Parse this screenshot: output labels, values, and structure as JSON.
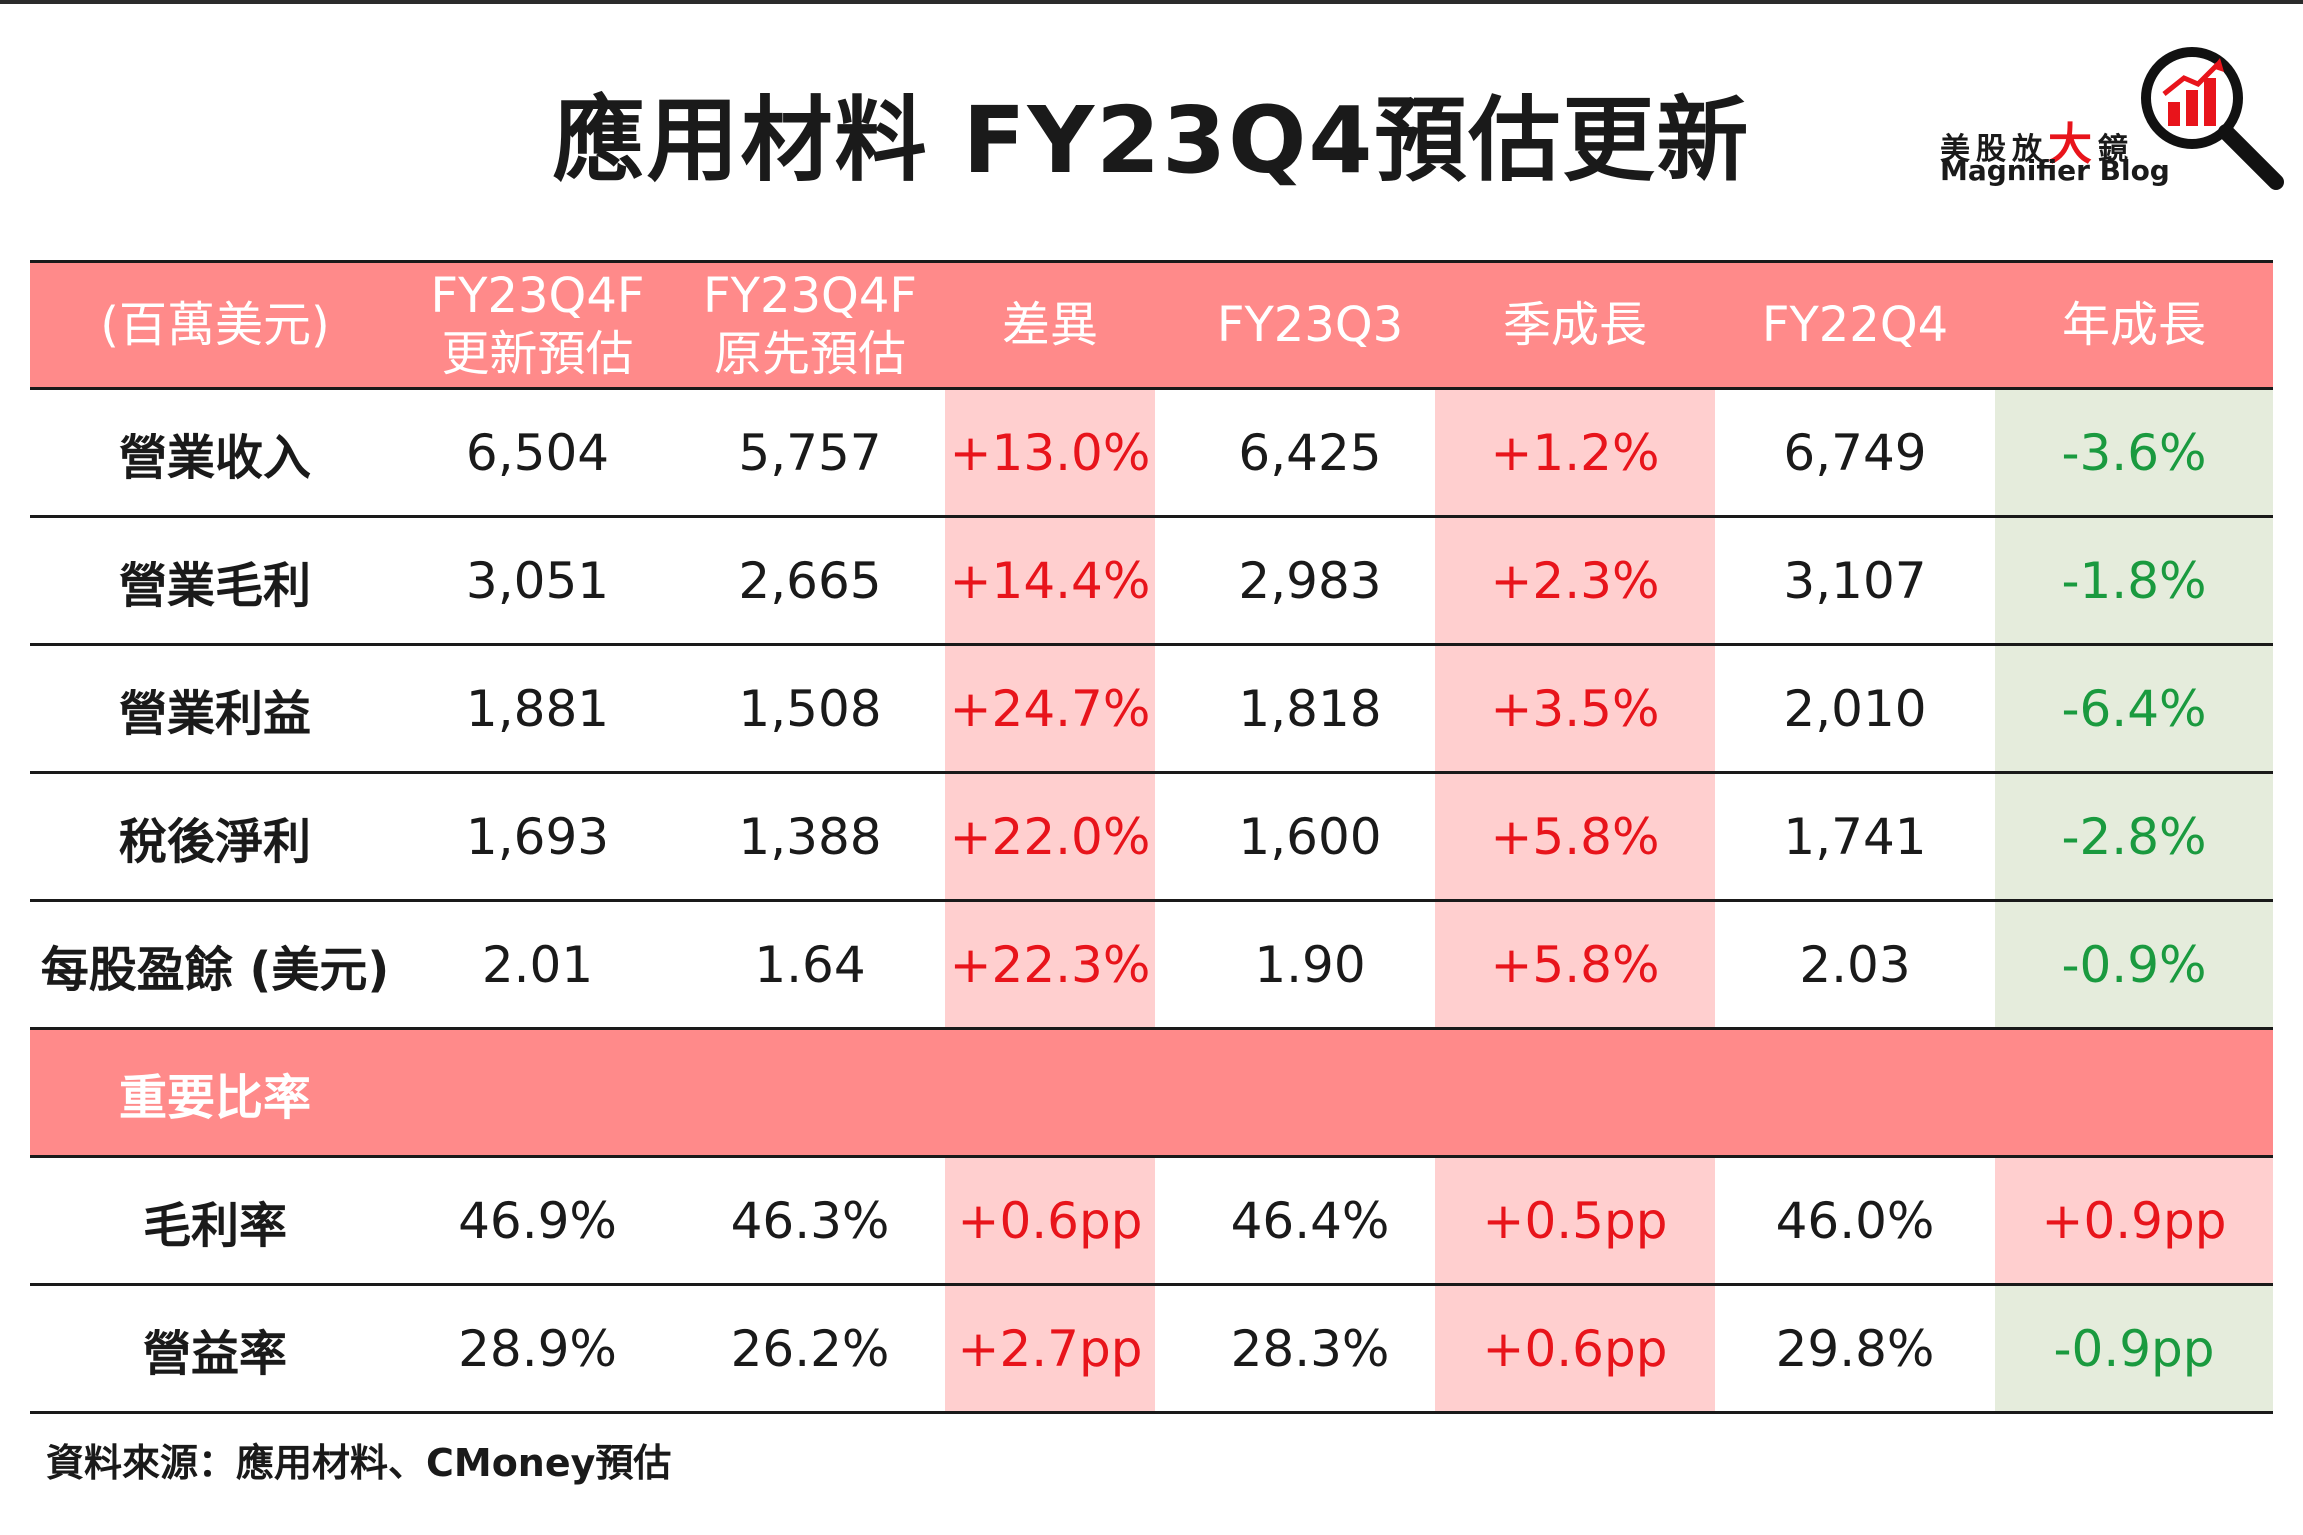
{
  "title": "應用材料 FY23Q4預估更新",
  "logo": {
    "cn_pre": "美股放",
    "cn_big": "大",
    "cn_post": "鏡",
    "en": "Magnifier Blog"
  },
  "colors": {
    "header_bg": "#ff8a8a",
    "highlight_pink": "#ffcfcf",
    "highlight_green": "#e5ecdc",
    "positive": "#e8141b",
    "negative": "#1a9a3f"
  },
  "chart_data": {
    "type": "table",
    "columns": [
      {
        "line1": "(百萬美元)",
        "line2": ""
      },
      {
        "line1": "FY23Q4F",
        "line2": "更新預估"
      },
      {
        "line1": "FY23Q4F",
        "line2": "原先預估"
      },
      {
        "line1": "差異",
        "line2": ""
      },
      {
        "line1": "FY23Q3",
        "line2": ""
      },
      {
        "line1": "季成長",
        "line2": ""
      },
      {
        "line1": "FY22Q4",
        "line2": ""
      },
      {
        "line1": "年成長",
        "line2": ""
      }
    ],
    "rows": [
      {
        "label": "營業收入",
        "cells": [
          "6,504",
          "5,757",
          "+13.0%",
          "6,425",
          "+1.2%",
          "6,749",
          "-3.6%"
        ]
      },
      {
        "label": "營業毛利",
        "cells": [
          "3,051",
          "2,665",
          "+14.4%",
          "2,983",
          "+2.3%",
          "3,107",
          "-1.8%"
        ]
      },
      {
        "label": "營業利益",
        "cells": [
          "1,881",
          "1,508",
          "+24.7%",
          "1,818",
          "+3.5%",
          "2,010",
          "-6.4%"
        ]
      },
      {
        "label": "稅後淨利",
        "cells": [
          "1,693",
          "1,388",
          "+22.0%",
          "1,600",
          "+5.8%",
          "1,741",
          "-2.8%"
        ]
      },
      {
        "label": "每股盈餘 (美元)",
        "cells": [
          "2.01",
          "1.64",
          "+22.3%",
          "1.90",
          "+5.8%",
          "2.03",
          "-0.9%"
        ]
      }
    ],
    "section": "重要比率",
    "ratio_rows": [
      {
        "label": "毛利率",
        "cells": [
          "46.9%",
          "46.3%",
          "+0.6pp",
          "46.4%",
          "+0.5pp",
          "46.0%",
          "+0.9pp"
        ]
      },
      {
        "label": "營益率",
        "cells": [
          "28.9%",
          "26.2%",
          "+2.7pp",
          "28.3%",
          "+0.6pp",
          "29.8%",
          "-0.9pp"
        ]
      }
    ]
  },
  "source": "資料來源：應用材料、CMoney預估"
}
